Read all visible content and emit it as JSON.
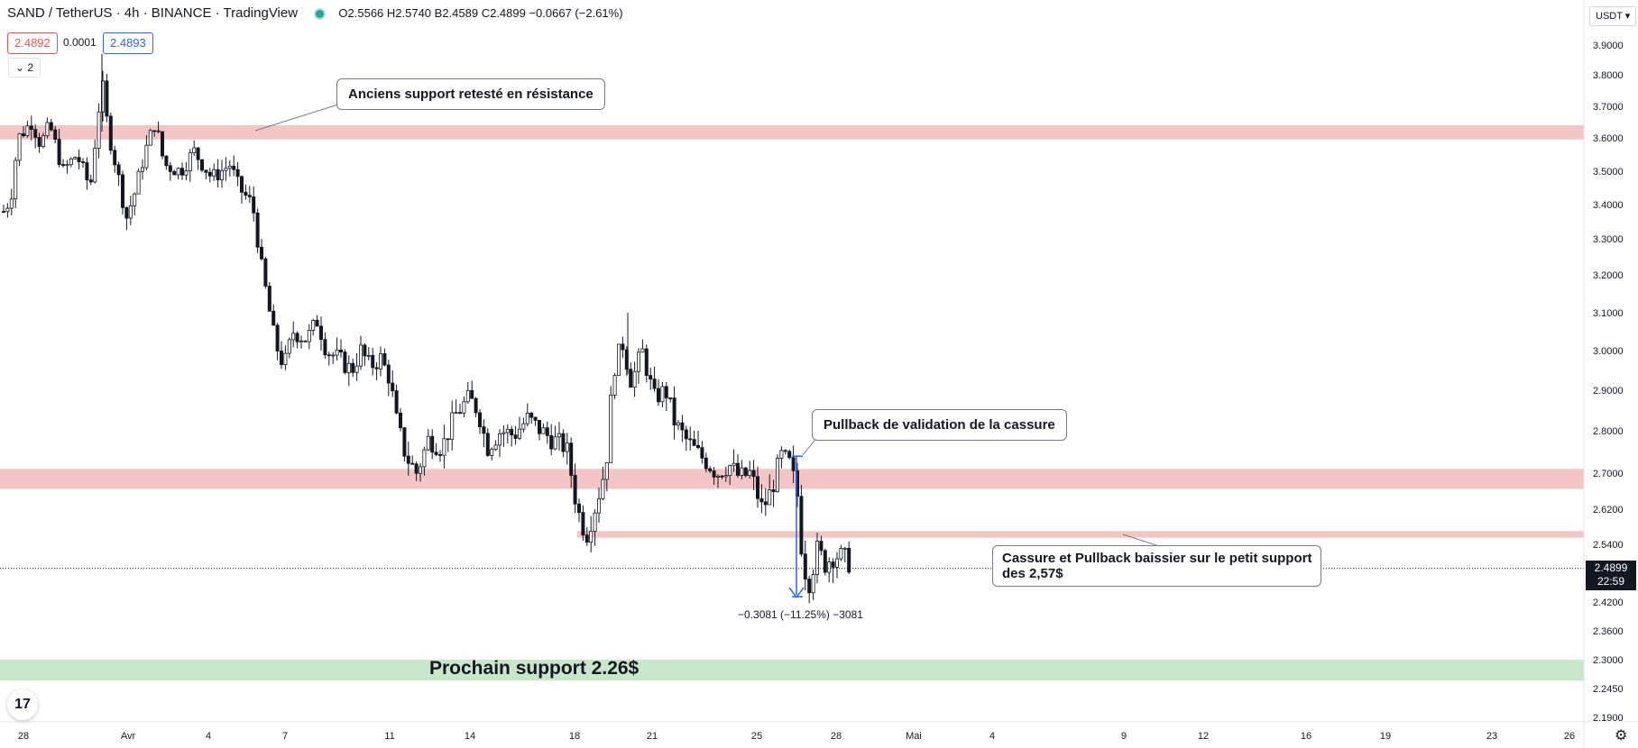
{
  "header": {
    "symbol": "SAND / TetherUS · 4h · BINANCE · TradingView",
    "ohlc": "O2.5566 H2.5740 B2.4589 C2.4899 −0.0667 (−2.61%)"
  },
  "trade": {
    "sell": "2.4892",
    "spread": "0.0001",
    "buy": "2.4893"
  },
  "indicator_toggle": "⌄ 2",
  "currency_button": "USDT ▾",
  "last_price": {
    "value": "2.4899",
    "countdown": "22:59"
  },
  "annotations": {
    "resistance_note": "Anciens support retesté en résistance",
    "pullback_note": "Pullback de validation de la cassure",
    "break_note_line1": "Cassure et Pullback baissier sur le petit support",
    "break_note_line2": "des 2,57$",
    "next_support": "Prochain support 2.26$",
    "measure": "−0.3081 (−11.25%) −3081"
  },
  "logo_text": "17",
  "settings_icon": "gear-icon",
  "colors": {
    "up": "#131722",
    "down": "#131722",
    "resistance_zone": "#f4c5c5",
    "support_zone": "#c8e6c9",
    "measure": "#2962ff"
  },
  "chart_data": {
    "type": "candlestick",
    "title": "",
    "ylim": [
      2.19,
      3.95
    ],
    "yticks": [
      "3.9000",
      "3.8000",
      "3.7000",
      "3.6000",
      "3.5000",
      "3.4000",
      "3.3000",
      "3.2000",
      "3.1000",
      "3.0000",
      "2.9000",
      "2.8000",
      "2.7000",
      "2.6200",
      "2.5400",
      "2.4200",
      "2.3600",
      "2.3000",
      "2.2450",
      "2.1900"
    ],
    "xticks": [
      "28",
      "Avr",
      "4",
      "7",
      "11",
      "14",
      "18",
      "21",
      "25",
      "28",
      "Mai",
      "4",
      "9",
      "12",
      "16",
      "19",
      "23",
      "26"
    ],
    "zones": [
      {
        "kind": "resistance",
        "from": 3.595,
        "to": 3.64
      },
      {
        "kind": "resistance",
        "from": 2.665,
        "to": 2.71
      },
      {
        "kind": "minor",
        "from": 2.555,
        "to": 2.57
      },
      {
        "kind": "support",
        "from": 2.26,
        "to": 2.3
      }
    ],
    "key_points": [
      {
        "label": "start",
        "price": 3.38
      },
      {
        "label": "march_high",
        "price": 3.86
      },
      {
        "label": "low_apr_11",
        "price": 2.65
      },
      {
        "label": "high_apr_20",
        "price": 3.1
      },
      {
        "label": "low_apr_18",
        "price": 2.54
      },
      {
        "label": "break_low",
        "price": 2.43
      },
      {
        "label": "close",
        "price": 2.4899
      }
    ]
  }
}
